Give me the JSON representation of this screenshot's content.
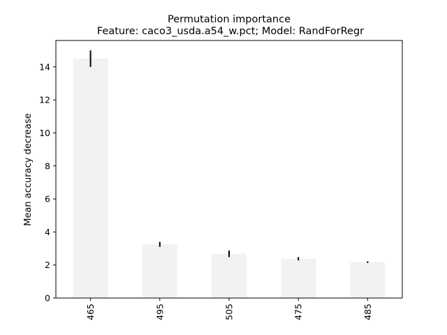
{
  "chart_data": {
    "type": "bar",
    "title": "Permutation importance",
    "subtitle": "Feature: caco3_usda.a54_w.pct; Model: RandForRegr",
    "xlabel": "",
    "ylabel": "Mean accuracy decrease",
    "categories": [
      "465",
      "495",
      "505",
      "475",
      "485"
    ],
    "values": [
      14.5,
      3.25,
      2.68,
      2.38,
      2.17
    ],
    "errors": [
      0.5,
      0.15,
      0.2,
      0.1,
      0.05
    ],
    "ylim": [
      0,
      15.6
    ],
    "yticks": [
      0,
      2,
      4,
      6,
      8,
      10,
      12,
      14
    ],
    "grid": false,
    "legend": "none",
    "bar_color": "#f2f2f2",
    "error_color": "#000000"
  }
}
